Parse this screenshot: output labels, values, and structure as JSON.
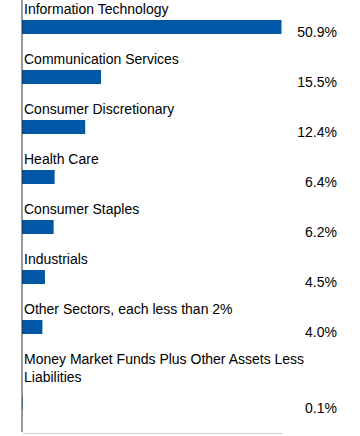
{
  "chart_data": {
    "type": "bar",
    "orientation": "horizontal",
    "categories": [
      "Information Technology",
      "Communication Services",
      "Consumer Discretionary",
      "Health Care",
      "Consumer Staples",
      "Industrials",
      "Other Sectors, each less than 2%",
      "Money Market Funds Plus Other Assets Less Liabilities"
    ],
    "values": [
      50.9,
      15.5,
      12.4,
      6.4,
      6.2,
      4.5,
      4.0,
      0.1
    ],
    "value_labels": [
      "50.9%",
      "15.5%",
      "12.4%",
      "6.4%",
      "6.2%",
      "4.5%",
      "4.0%",
      "0.1%"
    ],
    "color": "#0057a6",
    "xlim": [
      0,
      51
    ],
    "data_labels": true,
    "tick_labels": false,
    "grid": false
  }
}
